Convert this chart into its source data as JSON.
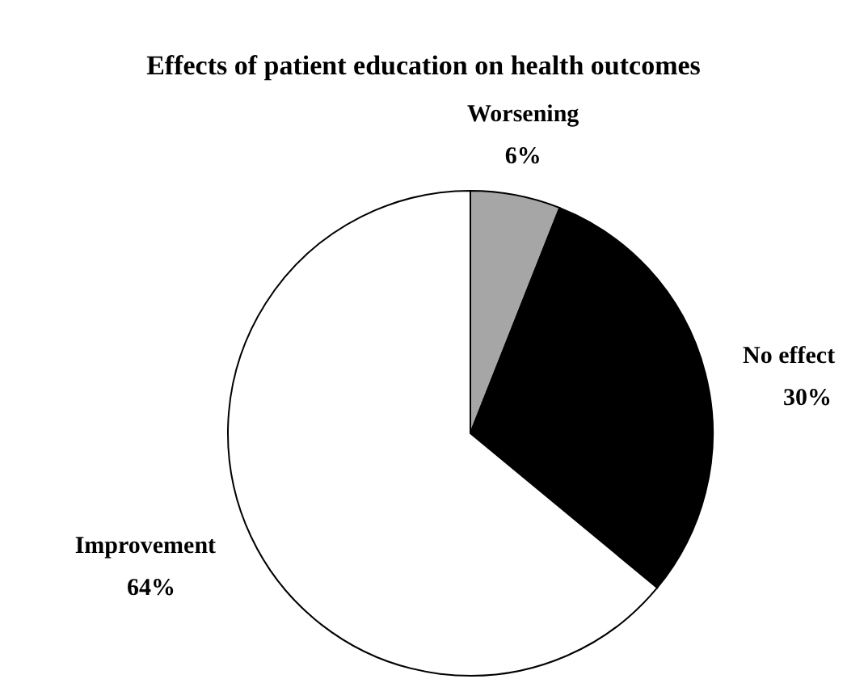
{
  "chart_data": {
    "type": "pie",
    "title": "Effects of patient education on health outcomes",
    "categories": [
      "Worsening",
      "No effect",
      "Improvement"
    ],
    "values": [
      6,
      30,
      64
    ],
    "colors": [
      "#a6a6a6",
      "#000000",
      "#ffffff"
    ],
    "value_labels": [
      "6%",
      "30%",
      "64%"
    ]
  }
}
